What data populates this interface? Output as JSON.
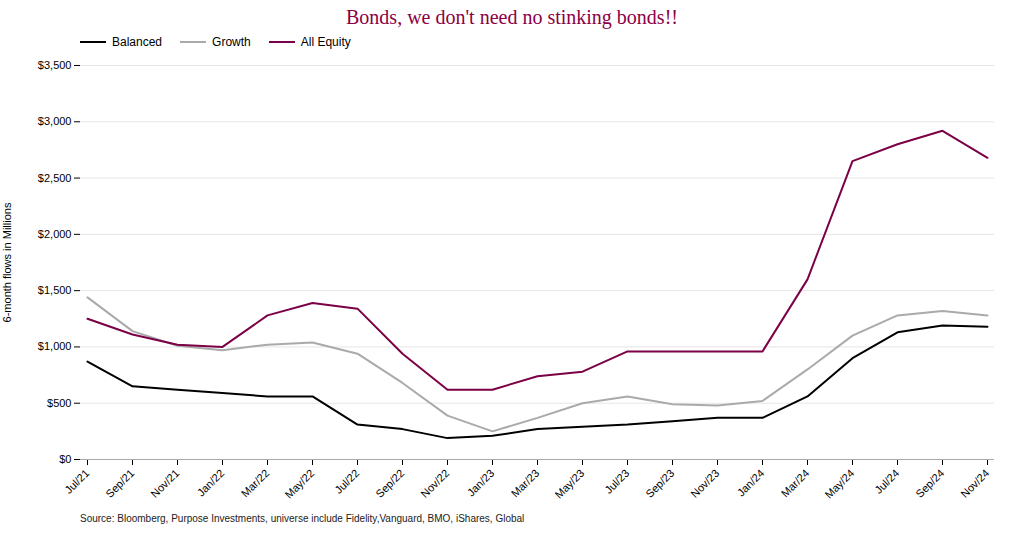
{
  "chart_data": {
    "type": "line",
    "title": "Bonds, we don't need no stinking bonds!!",
    "title_color": "#8B0045",
    "ylabel": "6-month flows in Millions",
    "source": "Source: Bloomberg, Purpose Investments, universe include Fidelity,Vanguard, BMO, iShares, Global",
    "categories": [
      "Jul/21",
      "Sep/21",
      "Nov/21",
      "Jan/22",
      "Mar/22",
      "May/22",
      "Jul/22",
      "Sep/22",
      "Nov/22",
      "Jan/23",
      "Mar/23",
      "May/23",
      "Jul/23",
      "Sep/23",
      "Nov/23",
      "Jan/24",
      "Mar/24",
      "May/24",
      "Jul/24",
      "Sep/24",
      "Nov/24"
    ],
    "series": [
      {
        "name": "Balanced",
        "color": "#000000",
        "values": [
          870,
          650,
          620,
          590,
          560,
          560,
          310,
          270,
          190,
          210,
          270,
          290,
          310,
          340,
          370,
          370,
          560,
          900,
          1130,
          1190,
          1180
        ]
      },
      {
        "name": "Growth",
        "color": "#aaaaaa",
        "values": [
          1440,
          1140,
          1010,
          970,
          1020,
          1040,
          940,
          680,
          390,
          250,
          370,
          500,
          560,
          490,
          480,
          520,
          800,
          1100,
          1280,
          1320,
          1280
        ]
      },
      {
        "name": "All Equity",
        "color": "#7B0045",
        "values": [
          1250,
          1110,
          1020,
          1000,
          1280,
          1390,
          1340,
          940,
          620,
          620,
          740,
          780,
          960,
          960,
          960,
          960,
          1600,
          2650,
          2800,
          2920,
          2680
        ]
      }
    ],
    "ylim": [
      0,
      3500
    ],
    "yticks": [
      {
        "value": 0,
        "label": "$0"
      },
      {
        "value": 500,
        "label": "$500"
      },
      {
        "value": 1000,
        "label": "$1,000"
      },
      {
        "value": 1500,
        "label": "$1,500"
      },
      {
        "value": 2000,
        "label": "$2,000"
      },
      {
        "value": 2500,
        "label": "$2,500"
      },
      {
        "value": 3000,
        "label": "$3,000"
      },
      {
        "value": 3500,
        "label": "$3,500"
      }
    ],
    "grid": true,
    "legend": "upper left"
  }
}
